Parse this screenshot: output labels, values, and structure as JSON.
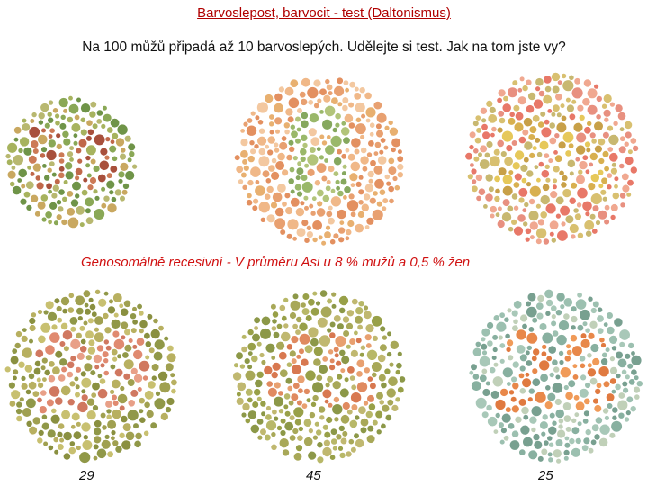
{
  "title": "Barvoslepost, barvocit - test (Daltonismus)",
  "subtitle": "Na 100 můžů připadá až 10 barvoslepých. Udělejte si test. Jak na tom jste vy?",
  "genetics_note": "Genosomálně recesivní - V průměru Asi u 8 % mužů a 0,5 % žen",
  "plates": [
    {
      "hidden_number": "56",
      "figure_palette": [
        "#c0684a",
        "#a8503c",
        "#cc7a56"
      ],
      "background_palette": [
        "#8aa856",
        "#a7b35e",
        "#6f9448",
        "#b8b870",
        "#c9a860"
      ]
    },
    {
      "hidden_number": "8",
      "figure_palette": [
        "#9ab86a",
        "#b2c47a",
        "#86a85e"
      ],
      "background_palette": [
        "#e8a070",
        "#f0b888",
        "#e39060",
        "#f3c8a0",
        "#e8b070"
      ]
    },
    {
      "hidden_number": "25",
      "figure_palette": [
        "#d8b050",
        "#e6c85a",
        "#c8a048"
      ],
      "background_palette": [
        "#e89080",
        "#f0a890",
        "#d8c070",
        "#e87868",
        "#c8b870"
      ]
    },
    {
      "hidden_number": "29",
      "figure_palette": [
        "#e08a70",
        "#e8a088",
        "#d07860"
      ],
      "background_palette": [
        "#a0a050",
        "#b8b060",
        "#909848",
        "#c8c070",
        "#8a9040"
      ],
      "answer": "29"
    },
    {
      "hidden_number": "45",
      "figure_palette": [
        "#e08a60",
        "#e8a070",
        "#d87850"
      ],
      "background_palette": [
        "#a8a858",
        "#98a048",
        "#b8b868",
        "#8c9848",
        "#c0b870"
      ],
      "answer": "45"
    },
    {
      "hidden_number": "25",
      "figure_palette": [
        "#e8884a",
        "#f09a58",
        "#e07a40"
      ],
      "background_palette": [
        "#88b0a0",
        "#9cc0b0",
        "#78a090",
        "#a8c8b8",
        "#c0d0b8"
      ],
      "answer": "25"
    }
  ]
}
